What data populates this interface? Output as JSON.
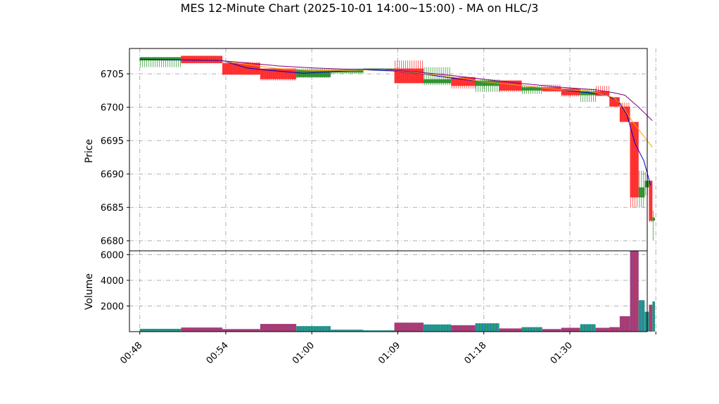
{
  "chart_data": {
    "type": "candlestick",
    "title": "MES 12-Minute Chart (2025-10-01 14:00~15:00) - MA on HLC/3",
    "price_panel": {
      "ylabel": "Price",
      "ylim": [
        6678.5,
        6708.8
      ],
      "yticks": [
        6680,
        6685,
        6690,
        6695,
        6700,
        6705
      ]
    },
    "volume_panel": {
      "ylabel": "Volume",
      "ylim": [
        0,
        6300
      ],
      "yticks": [
        2000,
        4000,
        6000
      ]
    },
    "xlim": [
      -0.6,
      29.5
    ],
    "xticks": [
      {
        "pos": 0,
        "label": "00:48"
      },
      {
        "pos": 5,
        "label": "00:54"
      },
      {
        "pos": 10,
        "label": "01:00"
      },
      {
        "pos": 15,
        "label": "01:09"
      },
      {
        "pos": 20,
        "label": "01:18"
      },
      {
        "pos": 25,
        "label": "01:30"
      },
      {
        "pos": 30,
        "label": ""
      }
    ],
    "grid": true,
    "up_color": "#228b22",
    "down_color": "#ff2020",
    "volume_up_color": "#20a080",
    "volume_down_color": "#a04080",
    "candles": [
      {
        "x": 0,
        "w": 2.4,
        "open": 6707.0,
        "high": 6707.5,
        "low": 6706.0,
        "close": 6707.5,
        "volume": 220
      },
      {
        "x": 2.4,
        "w": 2.4,
        "open": 6707.7,
        "high": 6707.7,
        "low": 6706.6,
        "close": 6706.6,
        "volume": 320
      },
      {
        "x": 4.8,
        "w": 2.2,
        "open": 6706.6,
        "high": 6706.8,
        "low": 6704.8,
        "close": 6704.9,
        "volume": 200
      },
      {
        "x": 7.0,
        "w": 2.1,
        "open": 6705.8,
        "high": 6705.8,
        "low": 6704.0,
        "close": 6704.2,
        "volume": 600
      },
      {
        "x": 9.1,
        "w": 2.0,
        "open": 6704.5,
        "high": 6705.8,
        "low": 6704.4,
        "close": 6705.6,
        "volume": 430
      },
      {
        "x": 11.1,
        "w": 1.9,
        "open": 6705.2,
        "high": 6705.8,
        "low": 6705.0,
        "close": 6705.6,
        "volume": 150
      },
      {
        "x": 13.0,
        "w": 1.8,
        "open": 6705.6,
        "high": 6705.8,
        "low": 6705.5,
        "close": 6705.8,
        "volume": 100
      },
      {
        "x": 14.8,
        "w": 1.7,
        "open": 6705.8,
        "high": 6707.0,
        "low": 6703.6,
        "close": 6703.6,
        "volume": 700
      },
      {
        "x": 16.5,
        "w": 1.6,
        "open": 6703.6,
        "high": 6706.0,
        "low": 6703.3,
        "close": 6704.2,
        "volume": 560
      },
      {
        "x": 18.1,
        "w": 1.4,
        "open": 6704.5,
        "high": 6704.5,
        "low": 6702.8,
        "close": 6703.2,
        "volume": 500
      },
      {
        "x": 19.5,
        "w": 1.4,
        "open": 6703.2,
        "high": 6704.2,
        "low": 6702.3,
        "close": 6704.0,
        "volume": 650
      },
      {
        "x": 20.9,
        "w": 1.3,
        "open": 6704.0,
        "high": 6704.0,
        "low": 6702.3,
        "close": 6702.5,
        "volume": 250
      },
      {
        "x": 22.2,
        "w": 1.2,
        "open": 6702.5,
        "high": 6703.2,
        "low": 6702.0,
        "close": 6703.0,
        "volume": 350
      },
      {
        "x": 23.4,
        "w": 1.1,
        "open": 6703.0,
        "high": 6703.4,
        "low": 6702.3,
        "close": 6702.4,
        "volume": 200
      },
      {
        "x": 24.5,
        "w": 1.1,
        "open": 6702.8,
        "high": 6702.8,
        "low": 6701.6,
        "close": 6701.8,
        "volume": 300
      },
      {
        "x": 25.6,
        "w": 0.9,
        "open": 6701.8,
        "high": 6702.8,
        "low": 6700.8,
        "close": 6702.4,
        "volume": 580
      },
      {
        "x": 26.5,
        "w": 0.8,
        "open": 6702.4,
        "high": 6703.2,
        "low": 6701.7,
        "close": 6701.7,
        "volume": 300
      },
      {
        "x": 27.3,
        "w": 0.6,
        "open": 6701.5,
        "high": 6701.5,
        "low": 6700.1,
        "close": 6700.1,
        "volume": 350
      },
      {
        "x": 27.9,
        "w": 0.6,
        "open": 6700.1,
        "high": 6700.7,
        "low": 6697.8,
        "close": 6697.8,
        "volume": 1200
      },
      {
        "x": 28.5,
        "w": 0.5,
        "open": 6697.8,
        "high": 6697.8,
        "low": 6685.0,
        "close": 6686.5,
        "volume": 6300
      },
      {
        "x": 29.0,
        "w": 0.35,
        "open": 6686.5,
        "high": 6690.5,
        "low": 6685.0,
        "close": 6688.0,
        "volume": 2450
      },
      {
        "x": 29.35,
        "w": 0.25,
        "open": 6688.0,
        "high": 6690.3,
        "low": 6686.8,
        "close": 6689.0,
        "volume": 1550
      },
      {
        "x": 29.6,
        "w": 0.2,
        "open": 6689.0,
        "high": 6689.0,
        "low": 6682.8,
        "close": 6683.0,
        "volume": 2100
      },
      {
        "x": 29.8,
        "w": 0.15,
        "open": 6683.0,
        "high": 6684.5,
        "low": 6680.0,
        "close": 6683.5,
        "volume": 2350
      }
    ],
    "ma_lines": [
      {
        "color": "#0000cc",
        "points": [
          [
            0.0,
            6707.2
          ],
          [
            4.8,
            6707.0
          ],
          [
            6.2,
            6705.9
          ],
          [
            7.2,
            6705.6
          ],
          [
            9.5,
            6705.1
          ],
          [
            11.0,
            6705.3
          ],
          [
            13.0,
            6705.6
          ],
          [
            15.0,
            6705.4
          ],
          [
            16.5,
            6705.0
          ],
          [
            18.0,
            6704.4
          ],
          [
            20.0,
            6703.8
          ],
          [
            22.0,
            6703.3
          ],
          [
            24.5,
            6702.6
          ],
          [
            26.0,
            6702.2
          ],
          [
            27.0,
            6701.9
          ],
          [
            27.8,
            6701.0
          ],
          [
            28.3,
            6699.0
          ],
          [
            28.8,
            6694.5
          ],
          [
            29.3,
            6692.0
          ],
          [
            29.7,
            6688.3
          ]
        ]
      },
      {
        "color": "#ffa500",
        "points": [
          [
            4.6,
            6707.0
          ],
          [
            6.0,
            6706.5
          ],
          [
            8.0,
            6705.8
          ],
          [
            10.0,
            6705.5
          ],
          [
            12.0,
            6705.5
          ],
          [
            14.0,
            6705.7
          ],
          [
            16.0,
            6705.2
          ],
          [
            18.0,
            6704.6
          ],
          [
            20.0,
            6703.8
          ],
          [
            22.0,
            6703.3
          ],
          [
            24.5,
            6702.6
          ],
          [
            26.0,
            6702.5
          ],
          [
            27.5,
            6701.5
          ],
          [
            28.0,
            6700.5
          ],
          [
            28.6,
            6698.0
          ],
          [
            29.2,
            6696.0
          ],
          [
            29.8,
            6694.0
          ]
        ]
      },
      {
        "color": "#800080",
        "points": [
          [
            4.6,
            6707.0
          ],
          [
            6.0,
            6706.7
          ],
          [
            8.0,
            6706.2
          ],
          [
            10.0,
            6705.9
          ],
          [
            12.0,
            6705.7
          ],
          [
            14.0,
            6705.7
          ],
          [
            16.0,
            6705.3
          ],
          [
            18.0,
            6704.8
          ],
          [
            20.0,
            6704.2
          ],
          [
            22.0,
            6703.6
          ],
          [
            24.5,
            6703.0
          ],
          [
            26.5,
            6702.6
          ],
          [
            27.5,
            6702.2
          ],
          [
            28.2,
            6701.8
          ],
          [
            29.0,
            6700.0
          ],
          [
            29.8,
            6698.0
          ]
        ]
      }
    ]
  }
}
